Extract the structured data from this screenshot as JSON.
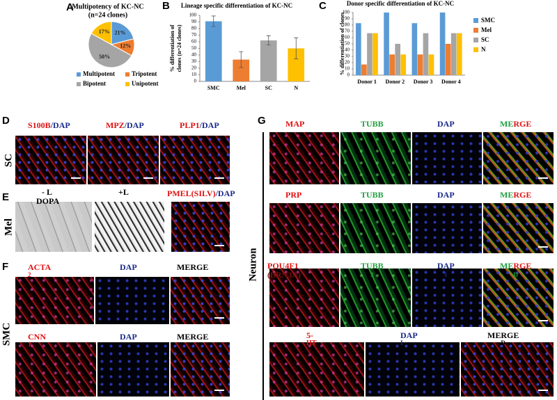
{
  "chart_data": [
    {
      "type": "pie",
      "title": "Multipotency of KC-NC",
      "subtitle": "(n=24 clones)",
      "categories": [
        "Multipotent",
        "Tripotent",
        "Bipotent",
        "Unipotent"
      ],
      "values": [
        21,
        12,
        50,
        17
      ],
      "value_labels": [
        "21%",
        "12%",
        "50%",
        "17%"
      ],
      "colors": [
        "#5b9bd5",
        "#ed7d31",
        "#a5a5a5",
        "#ffc000"
      ]
    },
    {
      "type": "bar",
      "title": "Lineage specific differentiation  of KC-NC",
      "y_label": [
        "% differentiation of",
        "clones (n=24 clones)"
      ],
      "categories": [
        "SMC",
        "Mel",
        "SC",
        "N"
      ],
      "values": [
        91,
        33,
        62,
        50
      ],
      "errors": [
        8,
        12,
        7,
        16
      ],
      "colors": [
        "#5b9bd5",
        "#ed7d31",
        "#a5a5a5",
        "#ffc000"
      ],
      "ylim": [
        0,
        100
      ],
      "yticks": [
        0,
        10,
        20,
        30,
        40,
        50,
        60,
        70,
        80,
        90,
        100
      ]
    },
    {
      "type": "bar",
      "title": "Donor specific differentiation of KC-NC",
      "y_label": "% differentiation of clones",
      "categories": [
        "Donor 1",
        "Donor 2",
        "Donor 3",
        "Donor 4"
      ],
      "series": [
        {
          "name": "SMC",
          "color": "#5b9bd5",
          "values": [
            83,
            100,
            83,
            100
          ]
        },
        {
          "name": "Mel",
          "color": "#ed7d31",
          "values": [
            17,
            33,
            33,
            50
          ]
        },
        {
          "name": "SC",
          "color": "#a5a5a5",
          "values": [
            67,
            50,
            67,
            67
          ]
        },
        {
          "name": "N",
          "color": "#ffc000",
          "values": [
            67,
            33,
            33,
            67
          ]
        }
      ],
      "ylim": [
        0,
        100
      ],
      "yticks": [
        0,
        10,
        20,
        30,
        40,
        50,
        60,
        70,
        80,
        90,
        100
      ],
      "legend": "right"
    }
  ],
  "panel_letters": [
    "A",
    "B",
    "C",
    "D",
    "E",
    "F",
    "G"
  ],
  "image_panels": {
    "D": {
      "row_label": "SC",
      "captions": [
        [
          "S100B",
          "/DAP"
        ],
        [
          "MPZ",
          "/DAP"
        ],
        [
          "PLP1",
          "/DAP"
        ]
      ]
    },
    "E": {
      "row_label": "Mel",
      "captions": [
        [
          "- L",
          "DOPA"
        ],
        [
          "+L"
        ],
        [
          "PMEL(SILV)",
          "/DAP"
        ]
      ]
    },
    "F": {
      "row_label": "SMC",
      "captions": [
        [
          "ACTA",
          "2"
        ],
        [
          "DAP"
        ],
        [
          "MERGE"
        ],
        [
          "CNN",
          "1"
        ],
        [
          "DAP"
        ],
        [
          "MERGE"
        ]
      ]
    },
    "G": {
      "row_label": "Neuron",
      "captions": [
        [
          "MAP"
        ],
        [
          "TUBB"
        ],
        [
          "DAP"
        ],
        [
          "ME",
          "RGE"
        ],
        [
          "PRP"
        ],
        [
          "TUBB"
        ],
        [
          "DAP"
        ],
        [
          "ME",
          "RGE"
        ],
        [
          "POU4F1",
          "(BRN3A)"
        ],
        [
          "TUBB",
          "3"
        ],
        [
          "DAP",
          "I"
        ],
        [
          "ME",
          "RGE",
          "D"
        ],
        [
          "5-",
          "HT"
        ],
        [
          "DAP",
          "I"
        ],
        [
          "MERGE",
          "D"
        ]
      ]
    }
  }
}
